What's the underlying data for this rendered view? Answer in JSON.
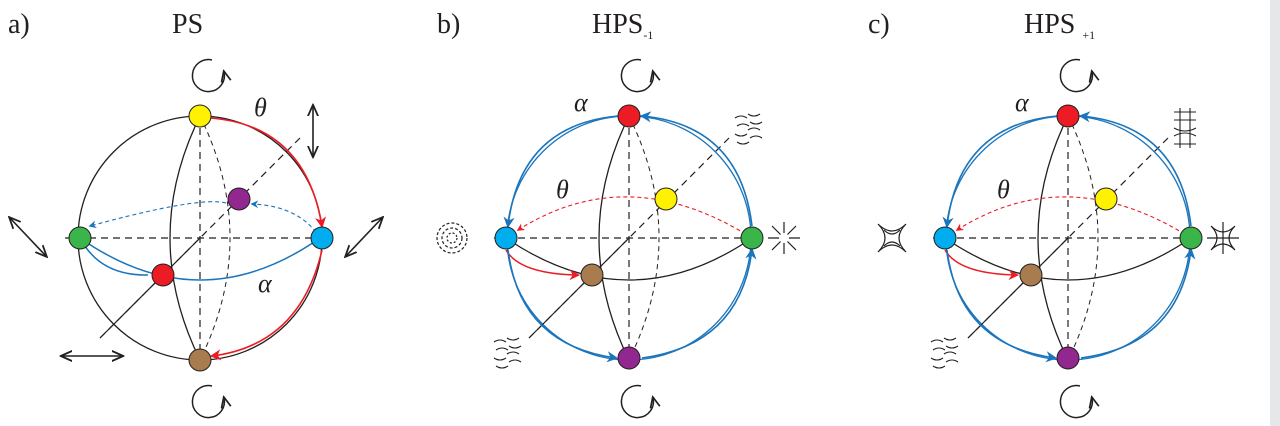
{
  "panels": [
    {
      "tag": "a)",
      "title": "PS",
      "title_sub": "",
      "theta": "θ",
      "alpha": "α"
    },
    {
      "tag": "b)",
      "title": "HPS",
      "title_sub": "-1",
      "theta": "θ",
      "alpha": "α"
    },
    {
      "tag": "c)",
      "title": "HPS ",
      "title_sub": "+1",
      "theta": "θ",
      "alpha": "α"
    }
  ],
  "colors": {
    "ink": "#231f20",
    "red_arrow": "#ec1c24",
    "blue_arrow": "#1b75bc",
    "red": "#ed1c24",
    "yellow": "#fff200",
    "green": "#39b54a",
    "cyan": "#00aeef",
    "purple": "#92278f",
    "brown": "#a97c50"
  }
}
